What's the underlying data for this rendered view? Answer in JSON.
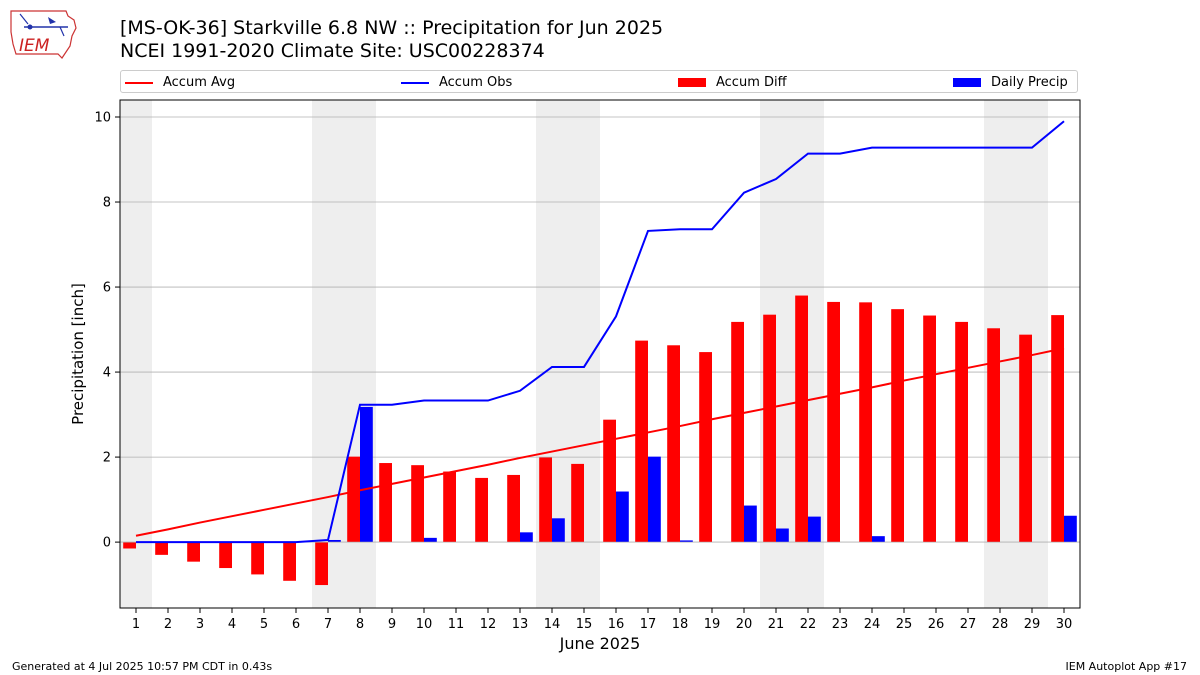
{
  "header": {
    "title": "[MS-OK-36] Starkville 6.8 NW :: Precipitation for Jun 2025",
    "subtitle": "NCEI 1991-2020 Climate Site: USC00228374"
  },
  "logo": {
    "text": "IEM"
  },
  "footer": {
    "generated": "Generated at 4 Jul 2025 10:57 PM CDT in 0.43s",
    "app": "IEM Autoplot App #17"
  },
  "colors": {
    "accum_avg": "#ff0000",
    "accum_obs": "#0000ff",
    "accum_diff": "#ff0000",
    "daily_precip": "#0000ff",
    "weekend_shade": "#eeeeee",
    "grid": "#b0b0b0"
  },
  "chart_data": {
    "type": "bar",
    "xlabel": "June 2025",
    "ylabel": "Precipitation [inch]",
    "xlim": [
      0.5,
      30.5
    ],
    "ylim": [
      -1.55,
      10.4
    ],
    "yticks": [
      0,
      2,
      4,
      6,
      8,
      10
    ],
    "grid": true,
    "legend_position": "top",
    "weekend_shading": [
      [
        0.5,
        1.5
      ],
      [
        6.5,
        8.5
      ],
      [
        13.5,
        15.5
      ],
      [
        20.5,
        22.5
      ],
      [
        27.5,
        29.5
      ]
    ],
    "days": [
      1,
      2,
      3,
      4,
      5,
      6,
      7,
      8,
      9,
      10,
      11,
      12,
      13,
      14,
      15,
      16,
      17,
      18,
      19,
      20,
      21,
      22,
      23,
      24,
      25,
      26,
      27,
      28,
      29,
      30
    ],
    "series": [
      {
        "name": "Accum Avg",
        "kind": "line",
        "values": [
          0.15,
          0.3,
          0.46,
          0.61,
          0.76,
          0.91,
          1.06,
          1.22,
          1.37,
          1.52,
          1.67,
          1.82,
          1.98,
          2.13,
          2.28,
          2.43,
          2.58,
          2.73,
          2.89,
          3.04,
          3.19,
          3.34,
          3.49,
          3.64,
          3.8,
          3.95,
          4.1,
          4.25,
          4.4,
          4.56
        ]
      },
      {
        "name": "Accum Obs",
        "kind": "line",
        "values": [
          0,
          0,
          0,
          0,
          0,
          0,
          0.05,
          3.23,
          3.23,
          3.33,
          3.33,
          3.33,
          3.56,
          4.12,
          4.12,
          5.31,
          7.32,
          7.36,
          7.36,
          8.22,
          8.54,
          9.14,
          9.14,
          9.28,
          9.28,
          9.28,
          9.28,
          9.28,
          9.28,
          9.9
        ]
      },
      {
        "name": "Accum Diff",
        "kind": "bar",
        "values": [
          -0.15,
          -0.3,
          -0.46,
          -0.61,
          -0.76,
          -0.91,
          -1.01,
          2.01,
          1.86,
          1.81,
          1.66,
          1.51,
          1.58,
          1.99,
          1.84,
          2.88,
          4.74,
          4.63,
          4.47,
          5.18,
          5.35,
          5.8,
          5.65,
          5.64,
          5.48,
          5.33,
          5.18,
          5.03,
          4.88,
          5.34
        ]
      },
      {
        "name": "Daily Precip",
        "kind": "bar",
        "values": [
          0,
          0,
          0,
          0,
          0,
          0,
          0.05,
          3.18,
          0,
          0.1,
          0,
          0,
          0.23,
          0.56,
          0,
          1.19,
          2.01,
          0.04,
          0,
          0.86,
          0.32,
          0.6,
          0,
          0.14,
          0,
          0,
          0,
          0,
          0,
          0.62
        ]
      }
    ]
  }
}
